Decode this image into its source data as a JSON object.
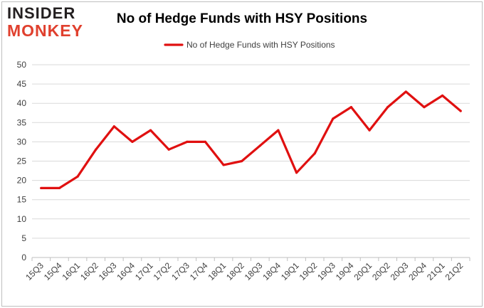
{
  "logo": {
    "line1": "INSIDER",
    "line2": "MONKEY"
  },
  "colors": {
    "series": "#e01010",
    "grid": "#d9d9d9",
    "logo_accent": "#e0402e",
    "logo_dark": "#231f20"
  },
  "chart_data": {
    "type": "line",
    "title": "No of Hedge Funds with HSY Positions",
    "xlabel": "",
    "ylabel": "",
    "ylim": [
      0,
      50
    ],
    "yticks": [
      0,
      5,
      10,
      15,
      20,
      25,
      30,
      35,
      40,
      45,
      50
    ],
    "grid": true,
    "legend_position": "top-center",
    "categories": [
      "15Q3",
      "15Q4",
      "16Q1",
      "16Q2",
      "16Q3",
      "16Q4",
      "17Q1",
      "17Q2",
      "17Q3",
      "17Q4",
      "18Q1",
      "18Q2",
      "18Q3",
      "18Q4",
      "19Q1",
      "19Q2",
      "19Q3",
      "19Q4",
      "20Q1",
      "20Q2",
      "20Q3",
      "20Q4",
      "21Q1",
      "21Q2"
    ],
    "series": [
      {
        "name": "No of Hedge Funds with HSY Positions",
        "values": [
          18,
          18,
          21,
          28,
          34,
          30,
          33,
          28,
          30,
          30,
          24,
          25,
          29,
          33,
          22,
          27,
          36,
          39,
          33,
          39,
          43,
          39,
          42,
          38
        ]
      }
    ]
  }
}
